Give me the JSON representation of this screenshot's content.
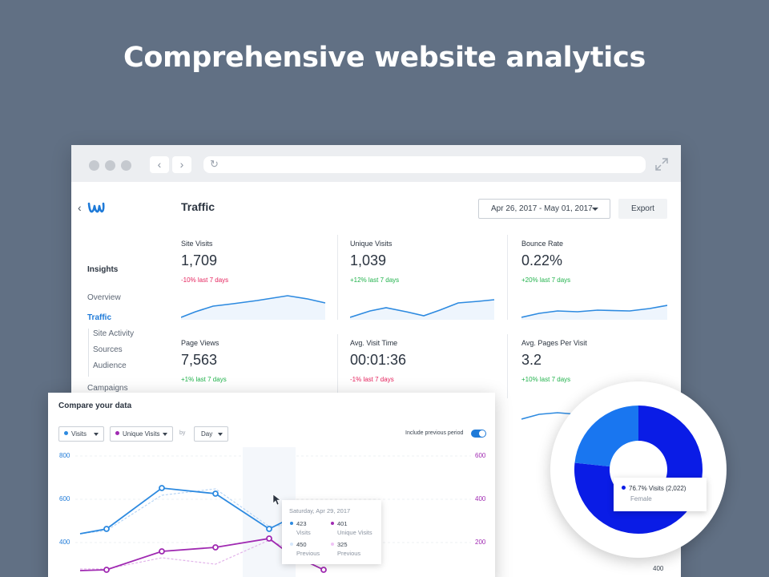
{
  "headline": "Comprehensive website analytics",
  "sidebar": {
    "section_title": "Insights",
    "items": [
      {
        "label": "Overview"
      },
      {
        "label": "Traffic"
      },
      {
        "label": "Campaigns"
      }
    ],
    "sub_items": [
      {
        "label": "Site Activity"
      },
      {
        "label": "Sources"
      },
      {
        "label": "Audience"
      }
    ]
  },
  "header": {
    "title": "Traffic",
    "date_range": "Apr 26, 2017 - May 01, 2017",
    "export_label": "Export"
  },
  "metrics": [
    {
      "label": "Site Visits",
      "value": "1,709",
      "delta": "-10% last 7 days",
      "trend": "negative"
    },
    {
      "label": "Unique Visits",
      "value": "1,039",
      "delta": "+12% last 7 days",
      "trend": "positive"
    },
    {
      "label": "Bounce Rate",
      "value": "0.22%",
      "delta": "+20% last 7 days",
      "trend": "positive"
    },
    {
      "label": "Page Views",
      "value": "7,563",
      "delta": "+1% last 7 days",
      "trend": "positive"
    },
    {
      "label": "Avg. Visit Time",
      "value": "00:01:36",
      "delta": "-1% last 7 days",
      "trend": "negative"
    },
    {
      "label": "Avg. Pages Per Visit",
      "value": "3.2",
      "delta": "+10% last 7 days",
      "trend": "positive"
    }
  ],
  "compare": {
    "title": "Compare your data",
    "metric_a": "Visits",
    "metric_b": "Unique Visits",
    "by_label": "by",
    "period": "Day",
    "include_label": "Include previous period",
    "include_on": true,
    "left_ticks": [
      "800",
      "600",
      "400"
    ],
    "right_ticks": [
      "600",
      "400",
      "200"
    ],
    "tooltip": {
      "date": "Saturday, Apr 29, 2017",
      "a_value": "423",
      "a_label": "Visits",
      "b_value": "401",
      "b_label": "Unique Visits",
      "a_prev": "450",
      "a_prev_label": "Previous",
      "b_prev": "325",
      "b_prev_label": "Previous"
    },
    "bottom_right_tick": "400"
  },
  "donut": {
    "main_label": "76.7% Visits (2,022)",
    "sub_label": "Female",
    "share_percent": 76.7
  },
  "colors": {
    "accent": "#1e7ad8",
    "visits": "#2d8ae0",
    "unique": "#a02ab2",
    "donut_primary": "#0a1ce6",
    "donut_secondary": "#1976f0",
    "negative": "#e5245e",
    "positive": "#21b24c"
  }
}
